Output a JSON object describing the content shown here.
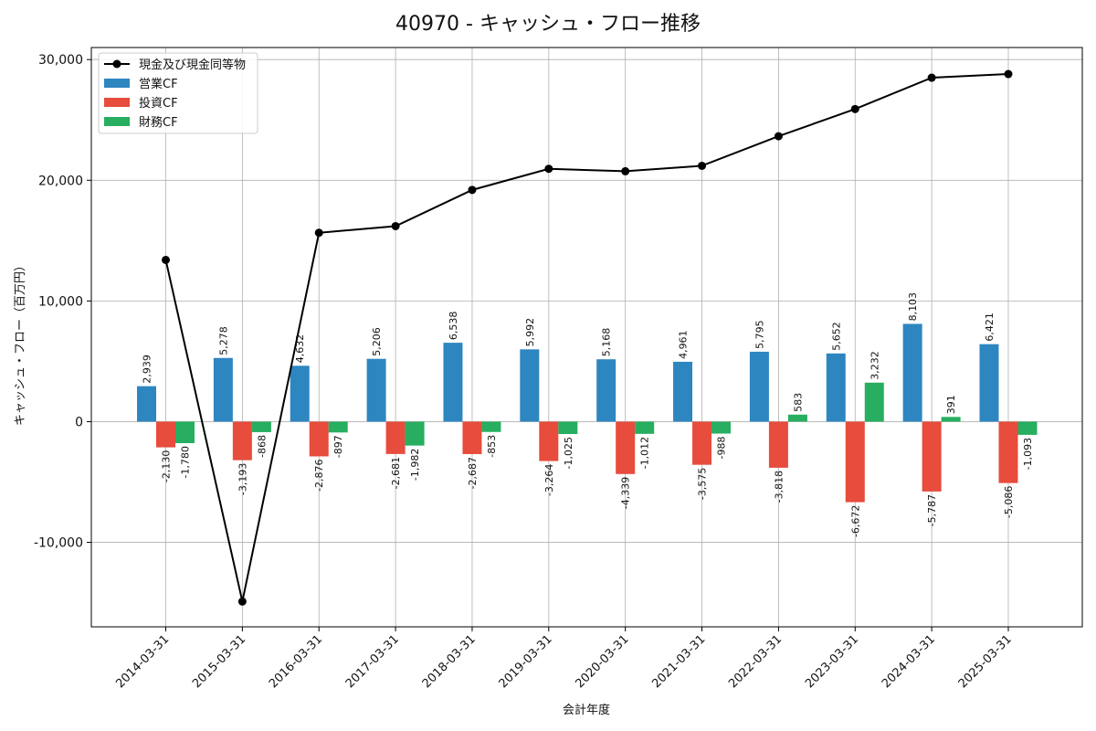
{
  "chart_data": {
    "type": "bar",
    "title": "40970 - キャッシュ・フロー推移",
    "xlabel": "会計年度",
    "ylabel": "キャッシュ・フロー（百万円）",
    "ylim": [
      -17000,
      31000
    ],
    "yticks": [
      -10000,
      0,
      10000,
      20000,
      30000
    ],
    "ytick_labels": [
      "-10,000",
      "0",
      "10,000",
      "20,000",
      "30,000"
    ],
    "grid": true,
    "legend_position": "top-left",
    "categories": [
      "2014-03-31",
      "2015-03-31",
      "2016-03-31",
      "2017-03-31",
      "2018-03-31",
      "2019-03-31",
      "2020-03-31",
      "2021-03-31",
      "2022-03-31",
      "2023-03-31",
      "2024-03-31",
      "2025-03-31"
    ],
    "series": [
      {
        "name": "営業CF",
        "type": "bar",
        "color": "#2e86c1",
        "values": [
          2939,
          5278,
          4632,
          5206,
          6538,
          5992,
          5168,
          4961,
          5795,
          5652,
          8103,
          6421
        ],
        "labels": [
          "2,939",
          "5,278",
          "4,632",
          "5,206",
          "6,538",
          "5,992",
          "5,168",
          "4,961",
          "5,795",
          "5,652",
          "8,103",
          "6,421"
        ]
      },
      {
        "name": "投資CF",
        "type": "bar",
        "color": "#e74c3c",
        "values": [
          -2130,
          -3193,
          -2876,
          -2681,
          -2687,
          -3264,
          -4339,
          -3575,
          -3818,
          -6672,
          -5787,
          -5086
        ],
        "labels": [
          "-2,130",
          "-3,193",
          "-2,876",
          "-2,681",
          "-2,687",
          "-3,264",
          "-4,339",
          "-3,575",
          "-3,818",
          "-6,672",
          "-5,787",
          "-5,086"
        ]
      },
      {
        "name": "財務CF",
        "type": "bar",
        "color": "#27ae60",
        "values": [
          -1780,
          -868,
          -897,
          -1982,
          -853,
          -1025,
          -1012,
          -988,
          583,
          3232,
          391,
          -1093
        ],
        "labels": [
          "-1,780",
          "-868",
          "-897",
          "-1,982",
          "-853",
          "-1,025",
          "-1,012",
          "-988",
          "583",
          "3,232",
          "391",
          "-1,093"
        ]
      },
      {
        "name": "現金及び現金同等物",
        "type": "line",
        "color": "#000000",
        "values": [
          13400,
          -14900,
          15650,
          16200,
          19200,
          20950,
          20750,
          21200,
          23650,
          25900,
          28500,
          28800
        ]
      }
    ]
  }
}
